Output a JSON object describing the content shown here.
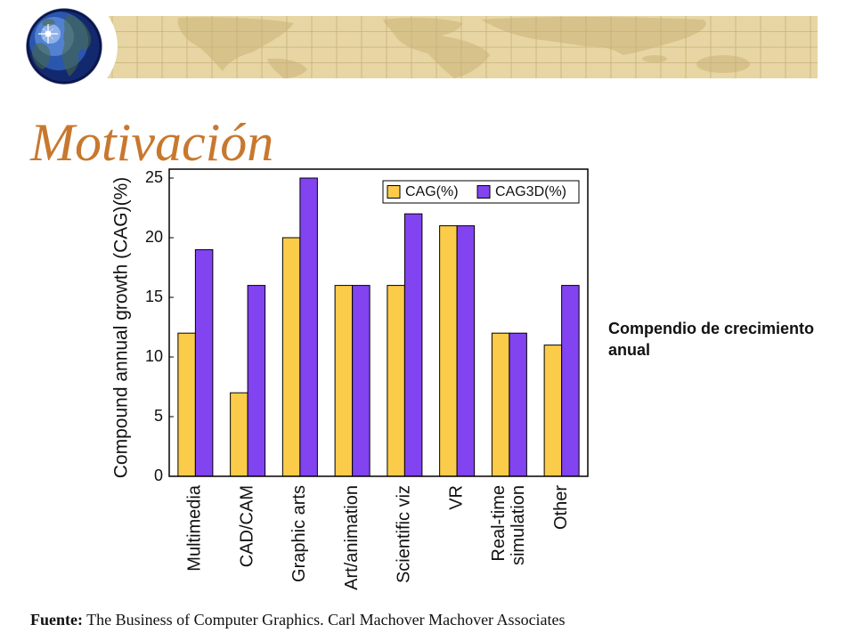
{
  "slide": {
    "title": "Motivación",
    "side_note": "Compendio de crecimiento anual",
    "source_label": "Fuente:",
    "source_text": "The Business of Computer Graphics. Carl Machover Machover Associates"
  },
  "header": {
    "logo_icon": "globe-icon",
    "banner_icon": "world-map-banner"
  },
  "colors": {
    "title": "#C8782E",
    "banner": "#E7D6A3",
    "globe": "#2E5BB5"
  },
  "chart_data": {
    "type": "bar",
    "categories": [
      "Multimedia",
      "CAD/CAM",
      "Graphic arts",
      "Art/animation",
      "Scientific viz",
      "VR",
      "Real-time simulation",
      "Other"
    ],
    "series": [
      {
        "name": "CAG(%)",
        "values": [
          12,
          7,
          20,
          16,
          16,
          21,
          12,
          11
        ],
        "color": "#FBCB4A"
      },
      {
        "name": "CAG3D(%)",
        "values": [
          19,
          16,
          25,
          16,
          22,
          21,
          12,
          16
        ],
        "color": "#8243F0"
      }
    ],
    "ylabel": "Compound annual growth (CAG)(%)",
    "ylim": [
      0,
      25
    ],
    "yticks": [
      0,
      5,
      10,
      15,
      20,
      25
    ],
    "legend": "top-right",
    "grid": false
  }
}
